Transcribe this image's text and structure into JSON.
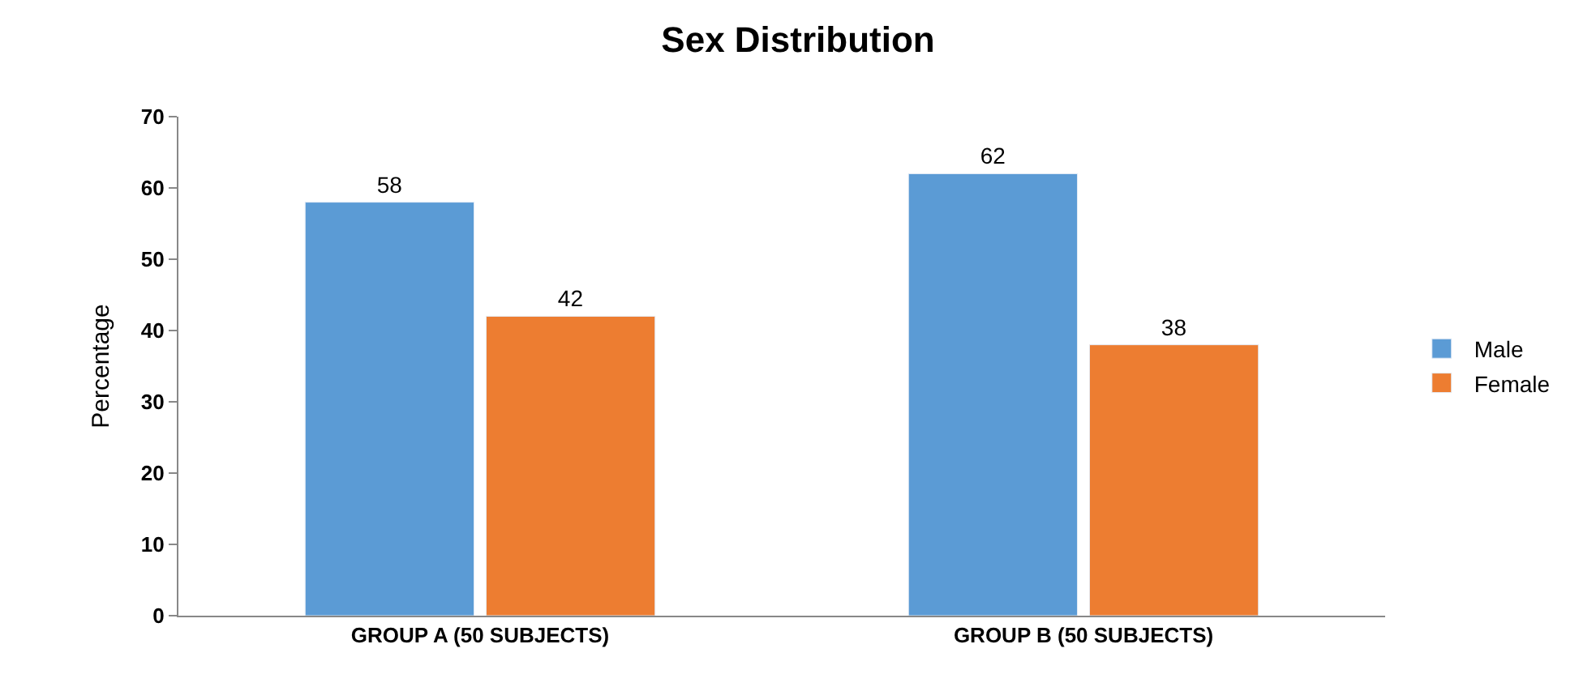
{
  "chart_data": {
    "type": "bar",
    "title": "Sex Distribution",
    "ylabel": "Percentage",
    "categories": [
      "GROUP A (50 SUBJECTS)",
      "GROUP B (50 SUBJECTS)"
    ],
    "series": [
      {
        "name": "Male",
        "color": "#5b9bd5",
        "values": [
          58,
          62
        ]
      },
      {
        "name": "Female",
        "color": "#ed7d31",
        "values": [
          42,
          38
        ]
      }
    ],
    "ylim": [
      0,
      70
    ],
    "yticks": [
      0,
      10,
      20,
      30,
      40,
      50,
      60,
      70
    ],
    "data_labels": true,
    "grid": false,
    "legend": "right"
  }
}
